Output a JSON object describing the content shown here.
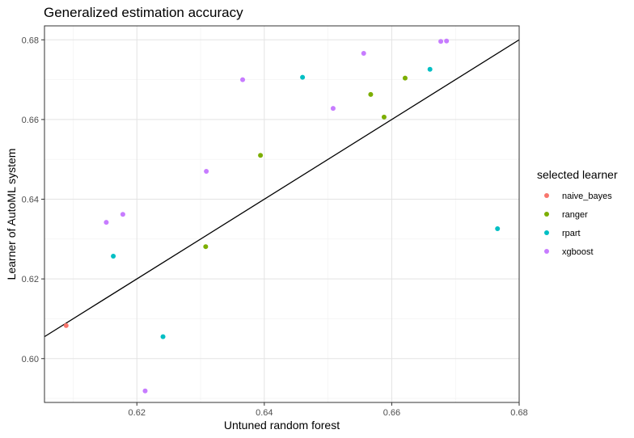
{
  "chart_data": {
    "type": "scatter",
    "title": "Generalized estimation accuracy",
    "xlabel": "Untuned random forest",
    "ylabel": "Learner of AutoML system",
    "xlim": [
      0.6055,
      0.68
    ],
    "ylim": [
      0.589,
      0.6835
    ],
    "x_ticks": [
      0.62,
      0.64,
      0.66,
      0.68
    ],
    "x_tick_labels": [
      "0.62",
      "0.64",
      "0.66",
      "0.68"
    ],
    "y_ticks": [
      0.6,
      0.62,
      0.64,
      0.66,
      0.68
    ],
    "y_tick_labels": [
      "0.60",
      "0.62",
      "0.64",
      "0.66",
      "0.68"
    ],
    "grid": true,
    "reference_line": {
      "type": "identity",
      "slope": 1,
      "intercept": 0,
      "color": "#000000"
    },
    "legend": {
      "title": "selected learner",
      "placement": "right"
    },
    "series": [
      {
        "name": "naive_bayes",
        "color": "#F8766D",
        "points": [
          {
            "x": 0.6089,
            "y": 0.6083
          }
        ]
      },
      {
        "name": "ranger",
        "color": "#7CAE00",
        "points": [
          {
            "x": 0.6308,
            "y": 0.6281
          },
          {
            "x": 0.6394,
            "y": 0.651
          },
          {
            "x": 0.6567,
            "y": 0.6663
          },
          {
            "x": 0.6588,
            "y": 0.6606
          },
          {
            "x": 0.6621,
            "y": 0.6704
          }
        ]
      },
      {
        "name": "rpart",
        "color": "#00BFC4",
        "points": [
          {
            "x": 0.6163,
            "y": 0.6257
          },
          {
            "x": 0.6241,
            "y": 0.6055
          },
          {
            "x": 0.646,
            "y": 0.6706
          },
          {
            "x": 0.666,
            "y": 0.6726
          },
          {
            "x": 0.6766,
            "y": 0.6326
          }
        ]
      },
      {
        "name": "xgboost",
        "color": "#C77CFF",
        "points": [
          {
            "x": 0.6152,
            "y": 0.6342
          },
          {
            "x": 0.6178,
            "y": 0.6362
          },
          {
            "x": 0.6213,
            "y": 0.5919
          },
          {
            "x": 0.6309,
            "y": 0.647
          },
          {
            "x": 0.6366,
            "y": 0.67
          },
          {
            "x": 0.6508,
            "y": 0.6628
          },
          {
            "x": 0.6556,
            "y": 0.6766
          },
          {
            "x": 0.6677,
            "y": 0.6796
          },
          {
            "x": 0.6686,
            "y": 0.6797
          }
        ]
      }
    ]
  }
}
